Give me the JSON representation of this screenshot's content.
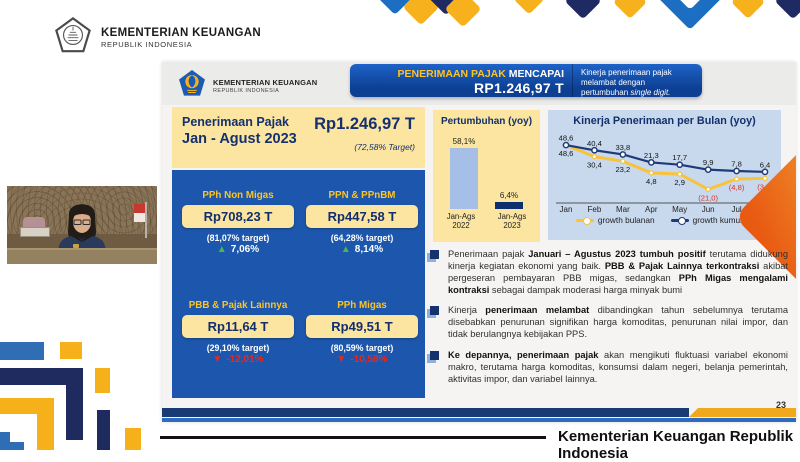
{
  "page": {
    "brand": {
      "title": "KEMENTERIAN KEUANGAN",
      "subtitle": "REPUBLIK INDONESIA"
    },
    "footer": {
      "text": "Kementerian Keuangan Republik Indonesia"
    }
  },
  "slide": {
    "logo": {
      "title": "KEMENTERIAN KEUANGAN",
      "subtitle": "REPUBLIK INDONESIA"
    },
    "banner": {
      "highlight": "PENERIMAAN PAJAK",
      "rest": " MENCAPAI",
      "amount": "RP1.246,97  T",
      "note": "Kinerja penerimaan pajak melambat dengan pertumbuhan ",
      "note_italic": "single digit."
    },
    "summary": {
      "title_line1": "Penerimaan Pajak",
      "title_line2": "Jan - Agust 2023",
      "amount": "Rp1.246,97 T",
      "target_note": "(72,58% Target)"
    },
    "tax_boxes": [
      {
        "label": "PPh Non Migas",
        "value": "Rp708,23 T",
        "target": "(81,07% target)",
        "growth": "7,06%",
        "direction": "up"
      },
      {
        "label": "PPN & PPnBM",
        "value": "Rp447,58 T",
        "target": "(64,28% target)",
        "growth": "8,14%",
        "direction": "up"
      },
      {
        "label": "PBB & Pajak Lainnya",
        "value": "Rp11,64 T",
        "target": "(29,10% target)",
        "growth": "-12,01%",
        "direction": "down"
      },
      {
        "label": "PPh Migas",
        "value": "Rp49,51 T",
        "target": "(80,59% target)",
        "growth": "-10,58%",
        "direction": "down"
      }
    ],
    "bullets": [
      {
        "segments": [
          {
            "t": "Penerimaan pajak ",
            "b": false
          },
          {
            "t": "Januari – Agustus 2023 tumbuh positif",
            "b": true
          },
          {
            "t": " terutama didukung kinerja kegiatan ekonomi yang baik. ",
            "b": false
          },
          {
            "t": "PBB & Pajak Lainnya terkontraksi",
            "b": true
          },
          {
            "t": " akibat pergeseran pembayaran PBB migas, sedangkan ",
            "b": false
          },
          {
            "t": "PPh Migas mengalami kontraksi",
            "b": true
          },
          {
            "t": " sebagai dampak moderasi harga minyak bumi",
            "b": false
          }
        ]
      },
      {
        "segments": [
          {
            "t": "Kinerja ",
            "b": false
          },
          {
            "t": "penerimaan melambat",
            "b": true
          },
          {
            "t": " dibandingkan tahun sebelumnya terutama disebabkan penurunan signifikan harga komoditas, penurunan nilai impor, dan tidak berulangnya kebijakan PPS.",
            "b": false
          }
        ]
      },
      {
        "segments": [
          {
            "t": "Ke depannya, penerimaan pajak",
            "b": true
          },
          {
            "t": " akan mengikuti fluktuasi variabel ekonomi makro, terutama harga komoditas, konsumsi dalam negeri, belanja pemerintah, aktivitas impor, dan variabel lainnya.",
            "b": false
          }
        ]
      }
    ],
    "page_number": "23"
  },
  "chart_data": [
    {
      "type": "bar",
      "title": "Pertumbuhan (yoy)",
      "categories": [
        "Jan-Ags 2022",
        "Jan-Ags 2023"
      ],
      "values": [
        58.1,
        6.4
      ],
      "labels": [
        "58,1%",
        "6,4%"
      ],
      "colors": [
        "#a6bfe6",
        "#0d2f6e"
      ],
      "ylim": [
        0,
        65
      ],
      "xlabel": "",
      "ylabel": ""
    },
    {
      "type": "line",
      "title": "Kinerja Penerimaan per Bulan (yoy)",
      "x": [
        "Jan",
        "Feb",
        "Mar",
        "Apr",
        "May",
        "Jun",
        "Jul",
        "Aug"
      ],
      "series": [
        {
          "name": "growth bulanan",
          "color": "#f8c33a",
          "values": [
            48.6,
            30.4,
            23.2,
            4.8,
            2.9,
            -21.0,
            -4.8,
            -3.8
          ],
          "labels": [
            "48,6",
            "30,4",
            "23,2",
            "4,8",
            "2,9",
            "(21,0)",
            "(4,8)",
            "(3,8)"
          ],
          "negative_label_color": "#d93025"
        },
        {
          "name": "growth kumulatif",
          "color": "#1e3a78",
          "values": [
            48.6,
            40.4,
            33.8,
            21.3,
            17.7,
            9.9,
            7.8,
            6.4
          ],
          "labels": [
            "48,6",
            "40,4",
            "33,8",
            "21,3",
            "17,7",
            "9,9",
            "7,8",
            "6,4"
          ]
        }
      ],
      "ylim": [
        -30,
        55
      ],
      "legend_position": "bottom"
    }
  ]
}
